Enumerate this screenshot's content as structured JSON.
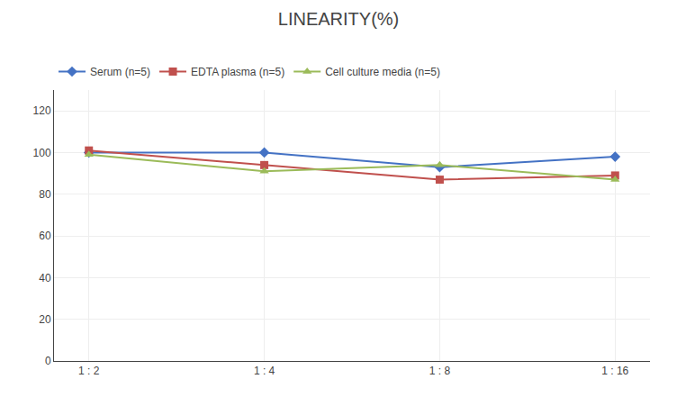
{
  "chart_data": {
    "type": "line",
    "title": "LINEARITY(%)",
    "categories": [
      "1 : 2",
      "1 : 4",
      "1 : 8",
      "1 : 16"
    ],
    "series": [
      {
        "name": "Serum (n=5)",
        "color": "#4472C4",
        "marker": "diamond",
        "values": [
          100,
          100,
          93,
          98
        ]
      },
      {
        "name": "EDTA plasma (n=5)",
        "color": "#C0504D",
        "marker": "square",
        "values": [
          101,
          94,
          87,
          89
        ]
      },
      {
        "name": "Cell culture media (n=5)",
        "color": "#9BBB59",
        "marker": "triangle-up",
        "values": [
          99,
          91,
          94,
          87
        ]
      }
    ],
    "ylim": [
      0,
      130
    ],
    "yticks": [
      0,
      20,
      40,
      60,
      80,
      100,
      120
    ],
    "grid": true,
    "legend": "upper left"
  }
}
